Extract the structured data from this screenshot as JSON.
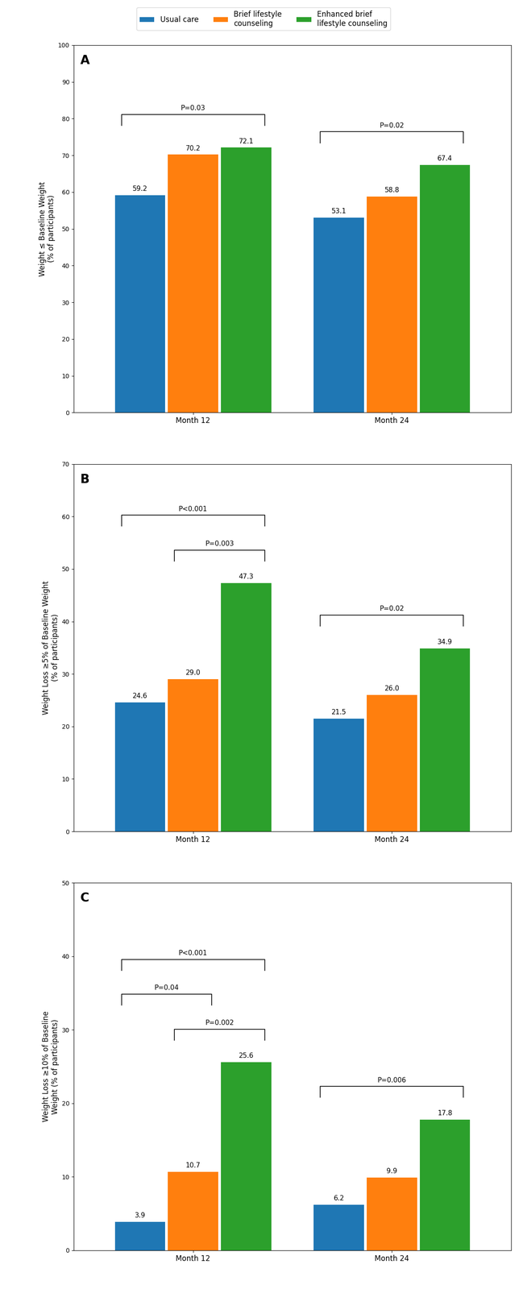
{
  "chart_data": [
    {
      "type": "bar",
      "title": "A",
      "y_label": "Weight ≤ Baseline Weight\n(% of participants)",
      "categories": [
        "Month 12",
        "Month 24"
      ],
      "series": [
        {
          "name": "Usual care",
          "values": [
            59.2,
            53.1
          ]
        },
        {
          "name": "Brief lifestyle\ncounseling",
          "values": [
            70.2,
            58.8
          ]
        },
        {
          "name": "Enhanced brief\nlifestyle counseling",
          "values": [
            72.1,
            67.4
          ]
        }
      ],
      "ylim": [
        0,
        100
      ],
      "yticks": [
        0,
        10,
        20,
        30,
        40,
        50,
        60,
        70,
        80,
        90,
        100
      ],
      "data_labels": true,
      "legend": "upper center",
      "annotations": [
        {
          "text": "P=0.03",
          "category": "Month 12",
          "from": "Usual care",
          "to": "Enhanced brief\nlifestyle counseling"
        },
        {
          "text": "P=0.02",
          "category": "Month 24",
          "from": "Usual care",
          "to": "Enhanced brief\nlifestyle counseling"
        }
      ]
    },
    {
      "type": "bar",
      "title": "B",
      "y_label": "Weight Loss ≥5% of Baseline Weight\n(% of participants)",
      "categories": [
        "Month 12",
        "Month 24"
      ],
      "series": [
        {
          "name": "Usual care",
          "values": [
            24.6,
            21.5
          ]
        },
        {
          "name": "Brief lifestyle\ncounseling",
          "values": [
            29.0,
            26.0
          ]
        },
        {
          "name": "Enhanced brief\nlifestyle counseling",
          "values": [
            47.3,
            34.9
          ]
        }
      ],
      "ylim": [
        0,
        70
      ],
      "yticks": [
        0,
        10,
        20,
        30,
        40,
        50,
        60,
        70
      ],
      "data_labels": true,
      "annotations": [
        {
          "text": "P<0.001",
          "category": "Month 12",
          "from": "Usual care",
          "to": "Enhanced brief\nlifestyle counseling"
        },
        {
          "text": "P=0.003",
          "category": "Month 12",
          "from": "Brief lifestyle\ncounseling",
          "to": "Enhanced brief\nlifestyle counseling"
        },
        {
          "text": "P=0.02",
          "category": "Month 24",
          "from": "Usual care",
          "to": "Enhanced brief\nlifestyle counseling"
        }
      ]
    },
    {
      "type": "bar",
      "title": "C",
      "y_label": "Weight Loss ≥10% of Baseline\nWeight (% of participants)",
      "categories": [
        "Month 12",
        "Month 24"
      ],
      "series": [
        {
          "name": "Usual care",
          "values": [
            3.9,
            6.2
          ]
        },
        {
          "name": "Brief lifestyle\ncounseling",
          "values": [
            10.7,
            9.9
          ]
        },
        {
          "name": "Enhanced brief\nlifestyle counseling",
          "values": [
            25.6,
            17.8
          ]
        }
      ],
      "ylim": [
        0,
        50
      ],
      "yticks": [
        0,
        10,
        20,
        30,
        40,
        50
      ],
      "data_labels": true,
      "annotations": [
        {
          "text": "P<0.001",
          "category": "Month 12",
          "from": "Usual care",
          "to": "Enhanced brief\nlifestyle counseling"
        },
        {
          "text": "P=0.002",
          "category": "Month 12",
          "from": "Brief lifestyle\ncounseling",
          "to": "Enhanced brief\nlifestyle counseling"
        },
        {
          "text": "P=0.04",
          "category": "Month 12",
          "from": "Usual care",
          "to": "Brief lifestyle\ncounseling"
        },
        {
          "text": "P=0.006",
          "category": "Month 24",
          "from": "Usual care",
          "to": "Enhanced brief\nlifestyle counseling"
        }
      ]
    }
  ]
}
